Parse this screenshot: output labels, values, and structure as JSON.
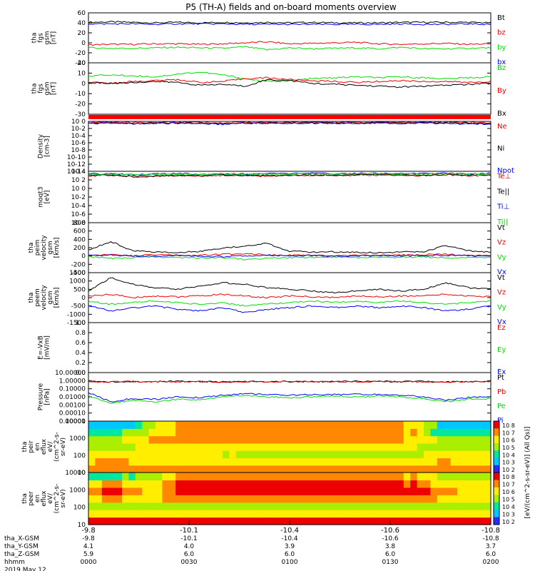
{
  "title": "P5 (TH-A) fields and on-board moments overview",
  "colors": {
    "black": "#000000",
    "red": "#ee0000",
    "green": "#00dd00",
    "blue": "#0000ff"
  },
  "chart_data": [
    {
      "type": "line",
      "ylabel": [
        "tha",
        "fgs",
        "gsm",
        "[nT]"
      ],
      "yticks": [
        "60",
        "40",
        "20",
        "0",
        "-20",
        "-40"
      ],
      "ylim": [
        -40,
        60
      ],
      "series": [
        {
          "name": "Bt",
          "color": "black",
          "values": [
            41,
            42,
            41,
            40,
            41,
            40,
            41,
            40,
            41,
            40,
            41,
            40,
            40,
            40,
            41,
            41,
            41,
            41,
            40
          ]
        },
        {
          "name": "bz",
          "color": "red",
          "values": [
            -4,
            -3,
            -3,
            -2,
            -2,
            -3,
            -2,
            0,
            2,
            -2,
            -1,
            0,
            1,
            -2,
            -3,
            -2,
            -1,
            -3,
            -2
          ]
        },
        {
          "name": "by",
          "color": "green",
          "values": [
            -10,
            -11,
            -11,
            -10,
            -9,
            -10,
            -11,
            -8,
            -14,
            -10,
            -12,
            -11,
            -10,
            -12,
            -9,
            -12,
            -12,
            -11,
            -10
          ]
        },
        {
          "name": "bx",
          "color": "blue",
          "values": [
            38,
            38,
            38,
            37,
            38,
            38,
            38,
            37,
            37,
            37,
            37,
            37,
            37,
            37,
            38,
            37,
            37,
            38,
            37
          ]
        }
      ]
    },
    {
      "type": "line",
      "ylabel": [
        "tha",
        "fgs",
        "gsm",
        "[nT]"
      ],
      "yticks": [
        "20",
        "10",
        "0",
        "-10",
        "-20",
        "-30"
      ],
      "ylim": [
        -35,
        20
      ],
      "series": [
        {
          "name": "Bz",
          "color": "green",
          "values": [
            6,
            7,
            6,
            5,
            8,
            10,
            7,
            3,
            0,
            1,
            3,
            4,
            5,
            4,
            5,
            4,
            3,
            4,
            5
          ]
        },
        {
          "name": "By",
          "color": "red",
          "values": [
            -1,
            -2,
            0,
            1,
            2,
            -1,
            0,
            3,
            4,
            2,
            1,
            0,
            -1,
            0,
            1,
            0,
            0,
            -1,
            0
          ]
        },
        {
          "name": "Bx",
          "color": "black",
          "values": [
            -1,
            -2,
            -1,
            0,
            -1,
            -4,
            -3,
            -5,
            2,
            1,
            -2,
            -3,
            -4,
            -5,
            -6,
            -5,
            -4,
            -3,
            -2
          ]
        }
      ]
    },
    {
      "type": "line",
      "log": true,
      "ylabel": [
        "Density",
        "[cm-3]"
      ],
      "yticks": [
        "10 0",
        "10-2",
        "10-4",
        "10-6",
        "10-8",
        "10-10",
        "10-12",
        "10-14"
      ],
      "ylim": [
        -14,
        0
      ],
      "series": [
        {
          "name": "Ne",
          "color": "red",
          "values": [
            -0.3,
            -0.2,
            -0.4,
            -0.3,
            -0.2,
            -0.3,
            -0.5,
            -0.2,
            -0.3,
            -0.3,
            -0.2,
            -0.2,
            -0.3,
            -0.2,
            -0.3,
            -0.2,
            -0.2,
            -0.3,
            -0.4
          ]
        },
        {
          "name": "Ni",
          "color": "black",
          "values": [
            -0.5,
            -0.4,
            -0.6,
            -0.5,
            -0.4,
            -0.5,
            -0.6,
            -0.4,
            -0.5,
            -0.5,
            -0.4,
            -0.4,
            -0.5,
            -0.4,
            -0.5,
            -0.4,
            -0.4,
            -0.5,
            -0.6
          ]
        },
        {
          "name": "Npot",
          "color": "blue",
          "values": [
            -0.6,
            -0.5,
            -0.7,
            -0.6,
            -0.5,
            -0.6,
            -0.8,
            -0.5,
            -0.6,
            -0.6,
            -0.5,
            -0.5,
            -0.6,
            -0.5,
            -0.6,
            -0.5,
            -0.6,
            -0.7,
            -0.8
          ]
        }
      ]
    },
    {
      "type": "line",
      "log": true,
      "ylabel": [
        "moqt3",
        "[eV]"
      ],
      "yticks": [
        "10 4",
        "10 2",
        "10 0",
        "10-2",
        "10-4",
        "10-6",
        "10-8"
      ],
      "ylim": [
        -9,
        4
      ],
      "series": [
        {
          "name": "Te⊥",
          "color": "red",
          "values": [
            2.8,
            3,
            2.6,
            2.7,
            2.9,
            2.8,
            3,
            2.9,
            2.8,
            2.9,
            3,
            2.9,
            3,
            3,
            3,
            2.9,
            3.1,
            2.9,
            3
          ]
        },
        {
          "name": "Te||",
          "color": "black",
          "values": [
            2.9,
            3.1,
            2.7,
            2.8,
            3,
            2.9,
            3.1,
            3,
            2.9,
            3,
            3.1,
            3,
            3.1,
            3.1,
            3.1,
            3,
            3.2,
            3,
            3.1
          ]
        },
        {
          "name": "Ti⊥",
          "color": "blue",
          "values": [
            3.3,
            3.4,
            3.2,
            3.3,
            3.4,
            3.3,
            3.4,
            3.3,
            3.4,
            3.4,
            3.5,
            3.4,
            3.5,
            3.5,
            3.4,
            3.4,
            3.5,
            3.4,
            3.5
          ]
        },
        {
          "name": "Ti||",
          "color": "green",
          "values": [
            3.2,
            3.3,
            3.1,
            3.2,
            3.3,
            3.2,
            3.3,
            3.2,
            3.3,
            3.3,
            3.4,
            3.3,
            3.4,
            3.4,
            3.3,
            3.3,
            3.4,
            3.3,
            3.4
          ]
        }
      ]
    },
    {
      "type": "line",
      "ylabel": [
        "tha",
        "peim",
        "velocity",
        "gsm",
        "[km/s]"
      ],
      "yticks": [
        "800",
        "600",
        "400",
        "200",
        "0",
        "-200",
        "-400"
      ],
      "ylim": [
        -400,
        800
      ],
      "series": [
        {
          "name": "Vt",
          "color": "black",
          "values": [
            150,
            350,
            120,
            100,
            90,
            110,
            180,
            250,
            300,
            120,
            90,
            100,
            90,
            80,
            95,
            100,
            250,
            120,
            100
          ]
        },
        {
          "name": "Vz",
          "color": "red",
          "values": [
            20,
            30,
            0,
            30,
            10,
            20,
            40,
            60,
            30,
            20,
            10,
            0,
            20,
            10,
            20,
            30,
            40,
            20,
            10
          ]
        },
        {
          "name": "Vy",
          "color": "green",
          "values": [
            -20,
            -60,
            -40,
            -20,
            -30,
            -50,
            -40,
            -80,
            -60,
            -40,
            -30,
            -20,
            -30,
            -40,
            -30,
            -20,
            -50,
            -40,
            -30
          ]
        },
        {
          "name": "Vx",
          "color": "blue",
          "values": [
            10,
            20,
            0,
            -10,
            10,
            0,
            -20,
            10,
            20,
            0,
            10,
            -10,
            0,
            10,
            0,
            10,
            20,
            0,
            10
          ]
        }
      ]
    },
    {
      "type": "line",
      "ylabel": [
        "tha",
        "peem",
        "velocity",
        "gsm",
        "[km/s]"
      ],
      "yticks": [
        "1500",
        "1000",
        "500",
        "0",
        "-500",
        "-1000",
        "-1500"
      ],
      "ylim": [
        -1500,
        1500
      ],
      "series": [
        {
          "name": "Vt",
          "color": "black",
          "values": [
            400,
            1200,
            800,
            600,
            500,
            700,
            900,
            800,
            600,
            500,
            400,
            300,
            400,
            500,
            400,
            500,
            900,
            600,
            500
          ]
        },
        {
          "name": "Vz",
          "color": "red",
          "values": [
            100,
            200,
            0,
            100,
            50,
            100,
            200,
            100,
            0,
            100,
            50,
            0,
            100,
            50,
            100,
            100,
            200,
            100,
            50
          ]
        },
        {
          "name": "Vy",
          "color": "green",
          "values": [
            -200,
            -400,
            -300,
            -200,
            -300,
            -400,
            -300,
            -500,
            -400,
            -300,
            -200,
            -300,
            -200,
            -300,
            -200,
            -300,
            -400,
            -300,
            -200
          ]
        },
        {
          "name": "Vx",
          "color": "blue",
          "values": [
            -500,
            -800,
            -600,
            -500,
            -700,
            -800,
            -600,
            -900,
            -700,
            -600,
            -500,
            -600,
            -500,
            -600,
            -500,
            -600,
            -800,
            -700,
            -500
          ]
        }
      ]
    },
    {
      "type": "line",
      "ylabel": [
        "E=-VxB",
        "[mV/m]"
      ],
      "yticks": [
        "1.0",
        "0.8",
        "0.6",
        "0.4",
        "0.2",
        "0.0"
      ],
      "ylim": [
        0,
        1
      ],
      "series": [
        {
          "name": "Ez",
          "color": "red",
          "values": []
        },
        {
          "name": "Ey",
          "color": "green",
          "values": []
        },
        {
          "name": "Ex",
          "color": "blue",
          "values": []
        }
      ]
    },
    {
      "type": "line",
      "log": true,
      "ylabel": [
        "Pressure",
        "[nPa]"
      ],
      "yticks": [
        "10.00000",
        "1.00000",
        "0.10000",
        "0.01000",
        "0.00100",
        "0.00010",
        "0.00001"
      ],
      "ylim": [
        -5,
        1
      ],
      "series": [
        {
          "name": "Pt",
          "color": "black",
          "values": [
            -0.1,
            -0.15,
            -0.1,
            -0.12,
            -0.1,
            -0.1,
            -0.15,
            -0.1,
            -0.1,
            -0.1,
            -0.12,
            -0.1,
            -0.1,
            -0.1,
            -0.12,
            -0.1,
            -0.15,
            -0.1,
            -0.1
          ]
        },
        {
          "name": "Pb",
          "color": "red",
          "values": [
            -0.12,
            -0.16,
            -0.12,
            -0.13,
            -0.12,
            -0.12,
            -0.16,
            -0.12,
            -0.12,
            -0.12,
            -0.13,
            -0.12,
            -0.12,
            -0.12,
            -0.13,
            -0.12,
            -0.16,
            -0.12,
            -0.12
          ]
        },
        {
          "name": "Pe",
          "color": "green",
          "values": [
            -1.9,
            -2.8,
            -2.4,
            -2.6,
            -2.3,
            -2.4,
            -2.0,
            -1.8,
            -2.0,
            -2.1,
            -2.0,
            -1.9,
            -2.0,
            -1.9,
            -2.0,
            -2.2,
            -2.6,
            -2.3,
            -2.2
          ]
        },
        {
          "name": "Pi",
          "color": "blue",
          "values": [
            -1.5,
            -2.6,
            -2.2,
            -2.3,
            -2.0,
            -2.1,
            -1.8,
            -1.6,
            -1.7,
            -1.8,
            -1.7,
            -1.7,
            -1.7,
            -1.7,
            -1.8,
            -2.0,
            -2.4,
            -2.1,
            -2.0
          ]
        }
      ]
    },
    {
      "type": "heatmap",
      "ylabel": [
        "tha",
        "peir",
        "en",
        "eflux",
        "eV/",
        "(cm^2-s-",
        "sr-eV)"
      ],
      "yticks": [
        "10000",
        "1000",
        "100",
        "10"
      ],
      "ylim": [
        10,
        20000
      ],
      "rows_low_to_high": [
        [
          5,
          5,
          5,
          5,
          5,
          5,
          5,
          5,
          5,
          5,
          5,
          5,
          5,
          5,
          5,
          5,
          5,
          5,
          5
        ],
        [
          4,
          5,
          4,
          4,
          4,
          4,
          4,
          4,
          4,
          4,
          4,
          4,
          4,
          4,
          4,
          4,
          5,
          4,
          4
        ],
        [
          4,
          4,
          4,
          4,
          4,
          4,
          4,
          3,
          3,
          3,
          3,
          3,
          3,
          3,
          3,
          3,
          4,
          4,
          4
        ],
        [
          3,
          3,
          4,
          4,
          4,
          4,
          4,
          4,
          4,
          4,
          4,
          4,
          4,
          4,
          4,
          3,
          3,
          3,
          3
        ],
        [
          3,
          3,
          4,
          5,
          5,
          5,
          5,
          5,
          5,
          5,
          5,
          5,
          5,
          5,
          5,
          4,
          3,
          3,
          3
        ],
        [
          2,
          2,
          3,
          4,
          5,
          5,
          5,
          5,
          5,
          5,
          5,
          5,
          5,
          5,
          5,
          4,
          2,
          2,
          2
        ],
        [
          1,
          1,
          2,
          4,
          5,
          5,
          5,
          5,
          5,
          5,
          5,
          5,
          5,
          5,
          5,
          4,
          1,
          1,
          1
        ]
      ]
    },
    {
      "type": "heatmap",
      "ylabel": [
        "tha",
        "peer",
        "en",
        "eflux",
        "eV/",
        "(cm^2-s-",
        "sr-eV)"
      ],
      "yticks": [
        "10000",
        "1000",
        "100",
        "10"
      ],
      "ylim": [
        10,
        20000
      ],
      "rows_low_to_high": [
        [
          6,
          6,
          6,
          6,
          6,
          6,
          6,
          6,
          6,
          6,
          6,
          6,
          6,
          6,
          6,
          6,
          6,
          6,
          6
        ],
        [
          4,
          4,
          4,
          4,
          4,
          4,
          4,
          4,
          4,
          4,
          4,
          4,
          4,
          4,
          4,
          4,
          4,
          4,
          4
        ],
        [
          3,
          3,
          3,
          3,
          3,
          3,
          3,
          3,
          3,
          3,
          3,
          3,
          3,
          3,
          3,
          3,
          3,
          3,
          3
        ],
        [
          4,
          5,
          4,
          4,
          5,
          5,
          5,
          5,
          5,
          5,
          5,
          5,
          5,
          5,
          5,
          5,
          4,
          4,
          4
        ],
        [
          5,
          6,
          5,
          4,
          6,
          6,
          6,
          6,
          6,
          6,
          6,
          6,
          6,
          6,
          6,
          6,
          5,
          4,
          4
        ],
        [
          4,
          5,
          4,
          4,
          6,
          6,
          6,
          6,
          6,
          6,
          6,
          6,
          6,
          6,
          6,
          5,
          4,
          4,
          4
        ],
        [
          2,
          2,
          3,
          3,
          5,
          5,
          5,
          5,
          5,
          5,
          5,
          5,
          5,
          5,
          5,
          4,
          3,
          3,
          3
        ]
      ]
    }
  ],
  "colorbars": [
    {
      "ticks": [
        "10 8",
        "10 7",
        "10 6",
        "10 5",
        "10 4",
        "10 3",
        "10 2"
      ]
    },
    {
      "ticks": [
        "10 8",
        "10 7",
        "10 6",
        "10 5",
        "10 4",
        "10 3",
        "10 2"
      ]
    }
  ],
  "colorbar_label": "[eV/(cm^2-s-sr-eV)] (All Qs)]",
  "xaxis": {
    "ticks": [
      "-9.8",
      "-10.1",
      "-10.4",
      "-10.6",
      "-10.8"
    ],
    "rows": [
      {
        "label": "tha_X-GSM",
        "values": [
          "-9.8",
          "-10.1",
          "-10.4",
          "-10.6",
          "-10.8"
        ]
      },
      {
        "label": "tha_Y-GSM",
        "values": [
          "4.1",
          "4.0",
          "3.9",
          "3.8",
          "3.7"
        ]
      },
      {
        "label": "tha_Z-GSM",
        "values": [
          "5.9",
          "6.0",
          "6.0",
          "6.0",
          "6.0"
        ]
      },
      {
        "label": "hhmm",
        "values": [
          "0000",
          "0030",
          "0100",
          "0130",
          "0200"
        ]
      }
    ],
    "date": "2019 May 12"
  }
}
